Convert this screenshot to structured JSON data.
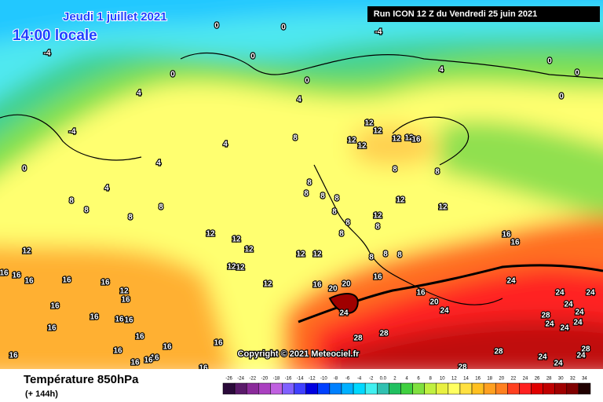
{
  "header": {
    "date": "Jeudi 1 juillet 2021",
    "time": "14:00 locale",
    "run": "Run ICON 12 Z du Vendredi 25 juin 2021"
  },
  "copyright": "Copyright © 2021 Meteociel.fr",
  "footer": {
    "title": "Température 850hPa",
    "lead": "(+ 144h)"
  },
  "scale": [
    {
      "value": -26,
      "color": "#2a0a3a"
    },
    {
      "value": -24,
      "color": "#5a1a6a"
    },
    {
      "value": -22,
      "color": "#8a2a9a"
    },
    {
      "value": -20,
      "color": "#aa40c0"
    },
    {
      "value": -18,
      "color": "#c060e0"
    },
    {
      "value": -16,
      "color": "#8060ff"
    },
    {
      "value": -14,
      "color": "#4040ff"
    },
    {
      "value": -12,
      "color": "#0000e0"
    },
    {
      "value": -10,
      "color": "#0040ff"
    },
    {
      "value": -8,
      "color": "#0080ff"
    },
    {
      "value": -6,
      "color": "#00b0ff"
    },
    {
      "value": -4,
      "color": "#00d8ff"
    },
    {
      "value": -2,
      "color": "#40f0f0"
    },
    {
      "value": {
        "value": 0,
        "label": "0.0"
      },
      "color": "#30c0b0"
    },
    {
      "value": 2,
      "color": "#20c060"
    },
    {
      "value": 4,
      "color": "#40d040"
    },
    {
      "value": 6,
      "color": "#80e040"
    },
    {
      "value": 8,
      "color": "#c0f040"
    },
    {
      "value": 10,
      "color": "#e8f040"
    },
    {
      "value": 12,
      "color": "#ffff60"
    },
    {
      "value": 14,
      "color": "#ffe040"
    },
    {
      "value": 16,
      "color": "#ffc020"
    },
    {
      "value": 18,
      "color": "#ffa020"
    },
    {
      "value": 20,
      "color": "#ff8020"
    },
    {
      "value": 22,
      "color": "#ff4020"
    },
    {
      "value": 24,
      "color": "#ff2020"
    },
    {
      "value": 26,
      "color": "#e00000"
    },
    {
      "value": 28,
      "color": "#c00000"
    },
    {
      "value": 30,
      "color": "#a00000"
    },
    {
      "value": 32,
      "color": "#800000"
    },
    {
      "value": 34,
      "color": "#200000"
    }
  ],
  "contour_labels": [
    0,
    0,
    -4,
    0,
    0,
    0,
    4,
    0,
    0,
    0,
    -4,
    4,
    4,
    -4,
    4,
    8,
    12,
    12,
    12,
    12,
    12,
    12,
    16,
    8,
    8,
    4,
    4,
    0,
    8,
    8,
    8,
    8,
    8,
    8,
    8,
    8,
    12,
    12,
    12,
    8,
    8,
    8,
    8,
    12,
    12,
    12,
    12,
    12,
    12,
    12,
    8,
    8,
    8,
    16,
    16,
    12,
    16,
    16,
    16,
    16,
    16,
    12,
    16,
    12,
    16,
    20,
    20,
    24,
    16,
    16,
    20,
    24,
    24,
    24,
    24,
    24,
    28,
    24,
    24,
    24,
    24,
    16,
    16,
    16,
    16,
    16,
    16,
    16,
    16,
    16,
    16,
    16,
    16,
    16,
    16,
    28,
    28,
    28,
    28,
    24,
    24,
    24,
    28
  ]
}
